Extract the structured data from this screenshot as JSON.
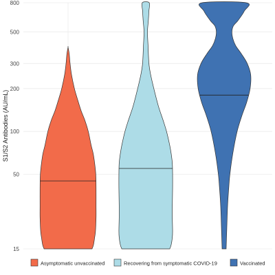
{
  "chart_data": {
    "type": "violin",
    "ylabel": "S1/S2 Antibodies (AU/mL)",
    "y_scale": "log",
    "ylim": [
      15,
      800
    ],
    "y_ticks": [
      15,
      50,
      100,
      200,
      300,
      500,
      800
    ],
    "grid": true,
    "legend_position": "bottom",
    "series": [
      {
        "name": "Asymptomatic unvaccinated",
        "color": "#F26B4A",
        "median": 45,
        "min": 15,
        "max": 390,
        "density": [
          [
            15,
            0.83
          ],
          [
            16,
            0.88
          ],
          [
            18,
            0.92
          ],
          [
            20,
            0.95
          ],
          [
            25,
            0.97
          ],
          [
            30,
            0.97
          ],
          [
            40,
            0.97
          ],
          [
            50,
            0.96
          ],
          [
            60,
            0.92
          ],
          [
            70,
            0.87
          ],
          [
            80,
            0.8
          ],
          [
            100,
            0.7
          ],
          [
            120,
            0.58
          ],
          [
            140,
            0.45
          ],
          [
            170,
            0.32
          ],
          [
            200,
            0.22
          ],
          [
            250,
            0.12
          ],
          [
            300,
            0.07
          ],
          [
            350,
            0.04
          ],
          [
            390,
            0.0
          ]
        ]
      },
      {
        "name": "Recovering from symptomatic COVID-19",
        "color": "#ADDCE7",
        "median": 55,
        "min": 15,
        "max": 800,
        "density": [
          [
            15,
            0.83
          ],
          [
            16,
            0.88
          ],
          [
            18,
            0.92
          ],
          [
            20,
            0.93
          ],
          [
            25,
            0.92
          ],
          [
            30,
            0.92
          ],
          [
            40,
            0.93
          ],
          [
            50,
            0.93
          ],
          [
            60,
            0.92
          ],
          [
            70,
            0.88
          ],
          [
            80,
            0.83
          ],
          [
            100,
            0.72
          ],
          [
            120,
            0.6
          ],
          [
            150,
            0.44
          ],
          [
            200,
            0.28
          ],
          [
            250,
            0.17
          ],
          [
            300,
            0.11
          ],
          [
            400,
            0.08
          ],
          [
            500,
            0.06
          ],
          [
            600,
            0.09
          ],
          [
            700,
            0.11
          ],
          [
            800,
            0.12
          ]
        ]
      },
      {
        "name": "Vaccinated",
        "color": "#3F72B2",
        "median": 180,
        "min": 15,
        "max": 800,
        "density": [
          [
            15,
            0.07
          ],
          [
            20,
            0.09
          ],
          [
            30,
            0.12
          ],
          [
            40,
            0.16
          ],
          [
            50,
            0.2
          ],
          [
            70,
            0.3
          ],
          [
            100,
            0.45
          ],
          [
            130,
            0.62
          ],
          [
            160,
            0.78
          ],
          [
            200,
            0.9
          ],
          [
            250,
            0.92
          ],
          [
            300,
            0.8
          ],
          [
            350,
            0.6
          ],
          [
            400,
            0.4
          ],
          [
            450,
            0.3
          ],
          [
            500,
            0.27
          ],
          [
            550,
            0.32
          ],
          [
            600,
            0.48
          ],
          [
            700,
            0.7
          ],
          [
            800,
            0.77
          ]
        ]
      }
    ]
  }
}
